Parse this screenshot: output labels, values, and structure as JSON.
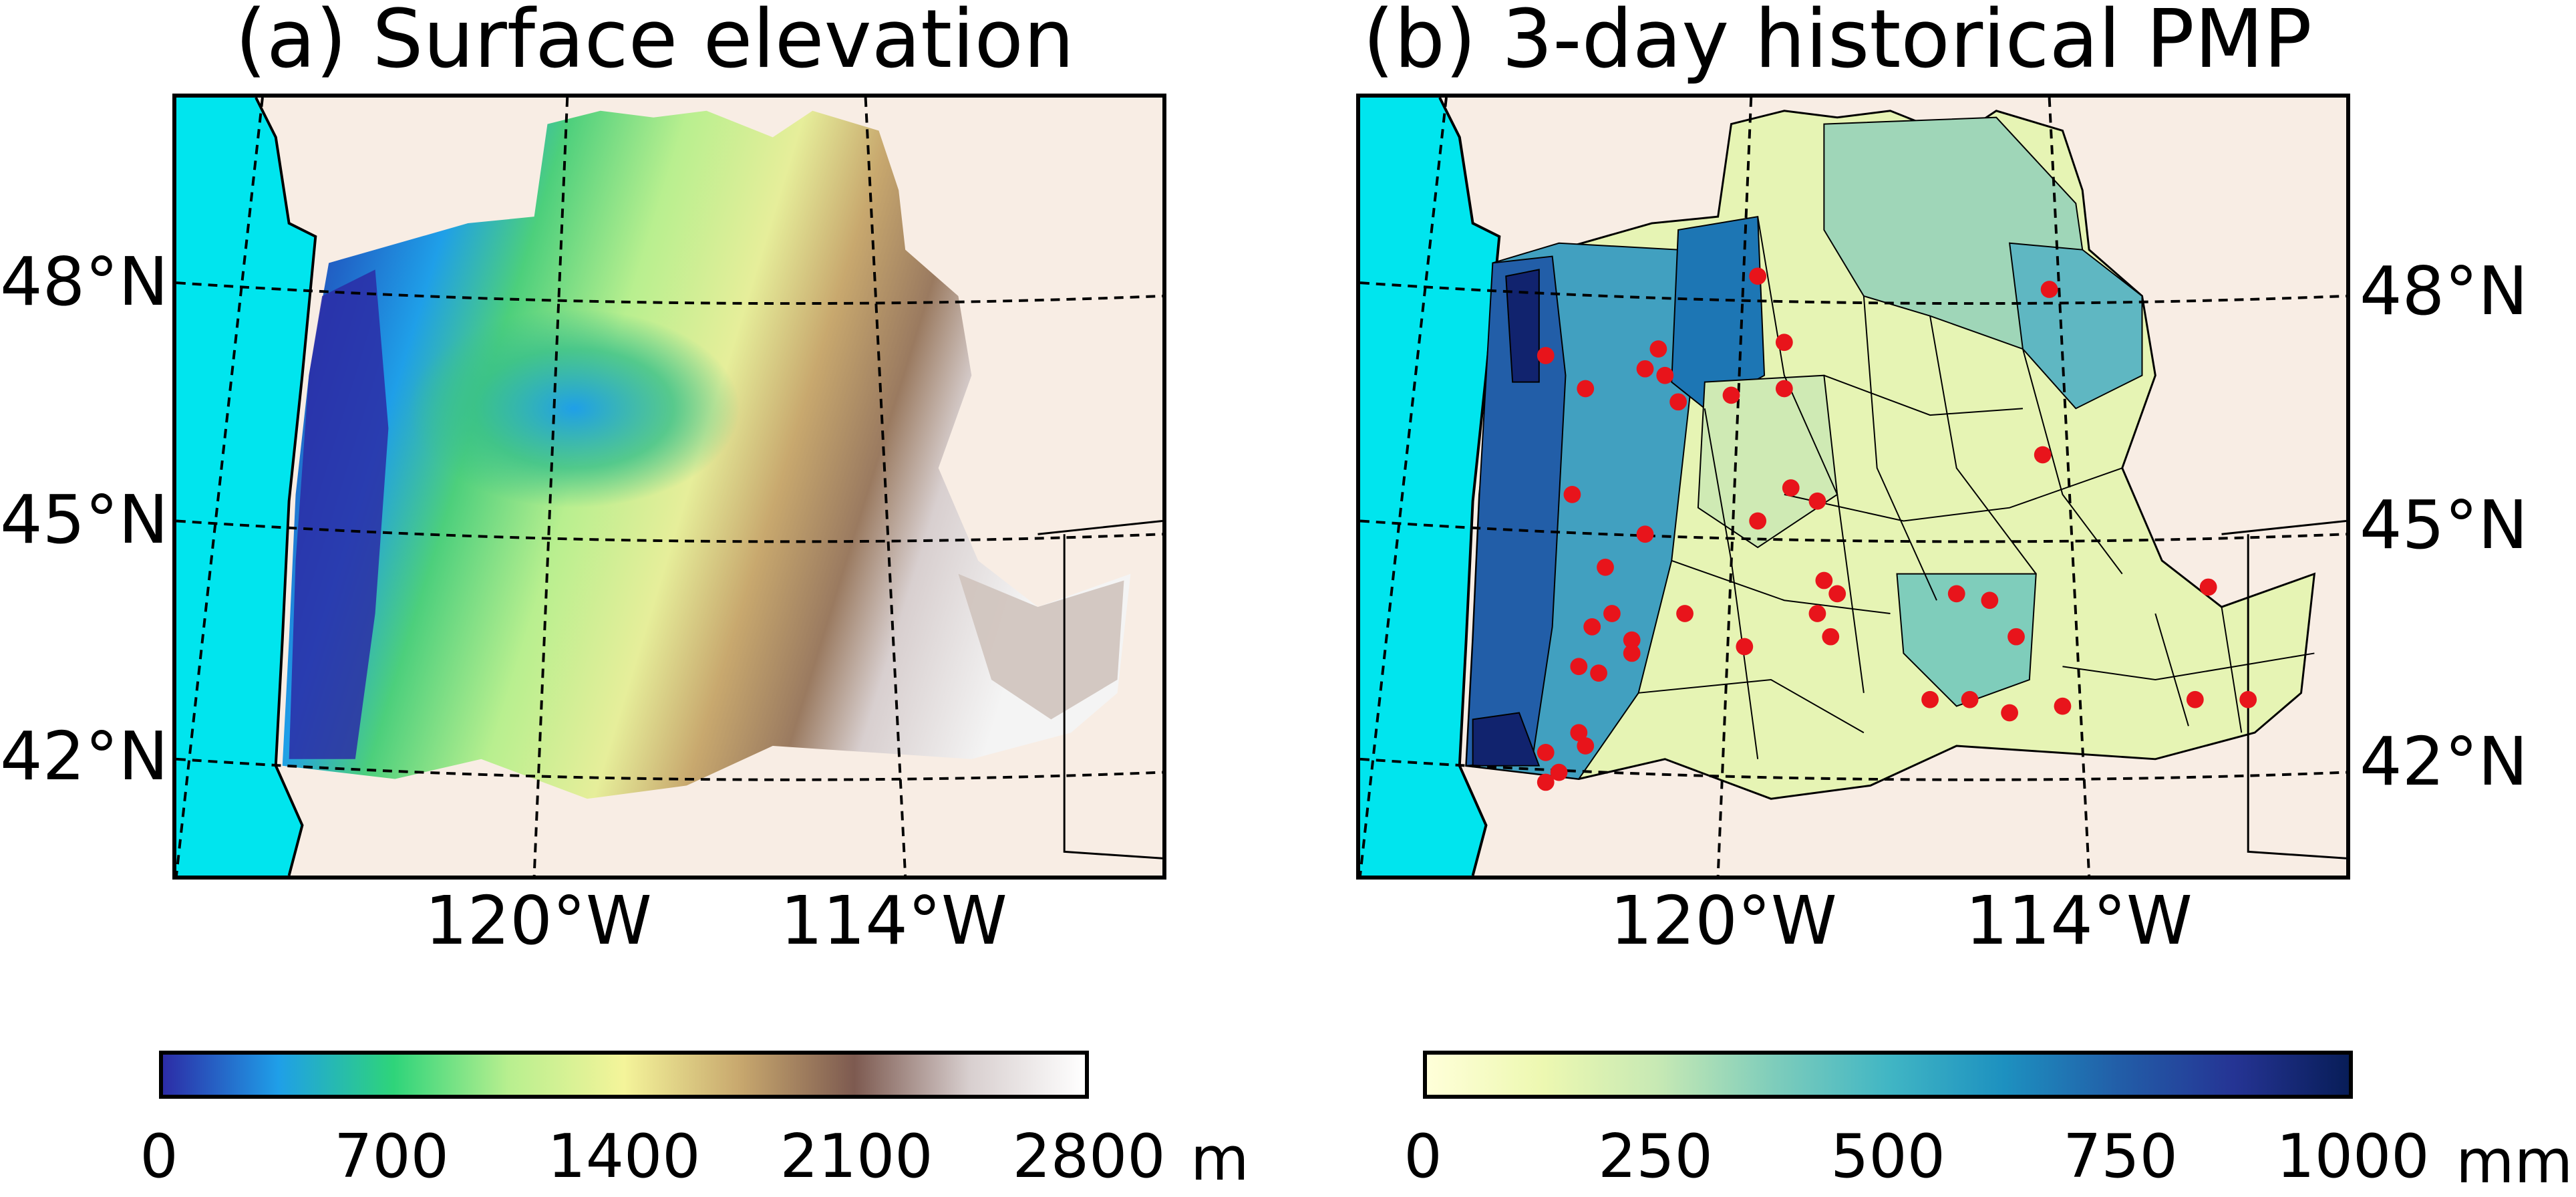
{
  "panels": [
    {
      "title": "(a) Surface elevation",
      "lat_labels": [
        "48°N",
        "45°N",
        "42°N"
      ],
      "lon_labels": [
        "120°W",
        "114°W"
      ],
      "colorbar": {
        "colormap": "gist_earth-like",
        "colors": [
          "#2c2ca6",
          "#1f9fe8",
          "#2ed47a",
          "#b8ef8f",
          "#f4f49a",
          "#c8a86e",
          "#7d5a50",
          "#d8cfcf",
          "#ffffff"
        ],
        "tick_labels": [
          "0",
          "700",
          "1400",
          "2100",
          "2800"
        ],
        "unit": "m"
      }
    },
    {
      "title": "(b) 3-day historical PMP",
      "lat_labels": [
        "48°N",
        "45°N",
        "42°N"
      ],
      "lon_labels": [
        "120°W",
        "114°W"
      ],
      "colorbar": {
        "colormap": "YlGnBu",
        "colors": [
          "#ffffd9",
          "#edf8b1",
          "#c7e9b4",
          "#7fcdbb",
          "#41b6c4",
          "#1d91c0",
          "#225ea8",
          "#253494",
          "#081d58"
        ],
        "tick_labels": [
          "0",
          "250",
          "500",
          "750",
          "1000"
        ],
        "unit": "mm"
      },
      "marker_color": "#e8141b"
    }
  ],
  "colors": {
    "ocean": "#00e5ee",
    "land": "#f8ede4",
    "border": "#000000"
  }
}
